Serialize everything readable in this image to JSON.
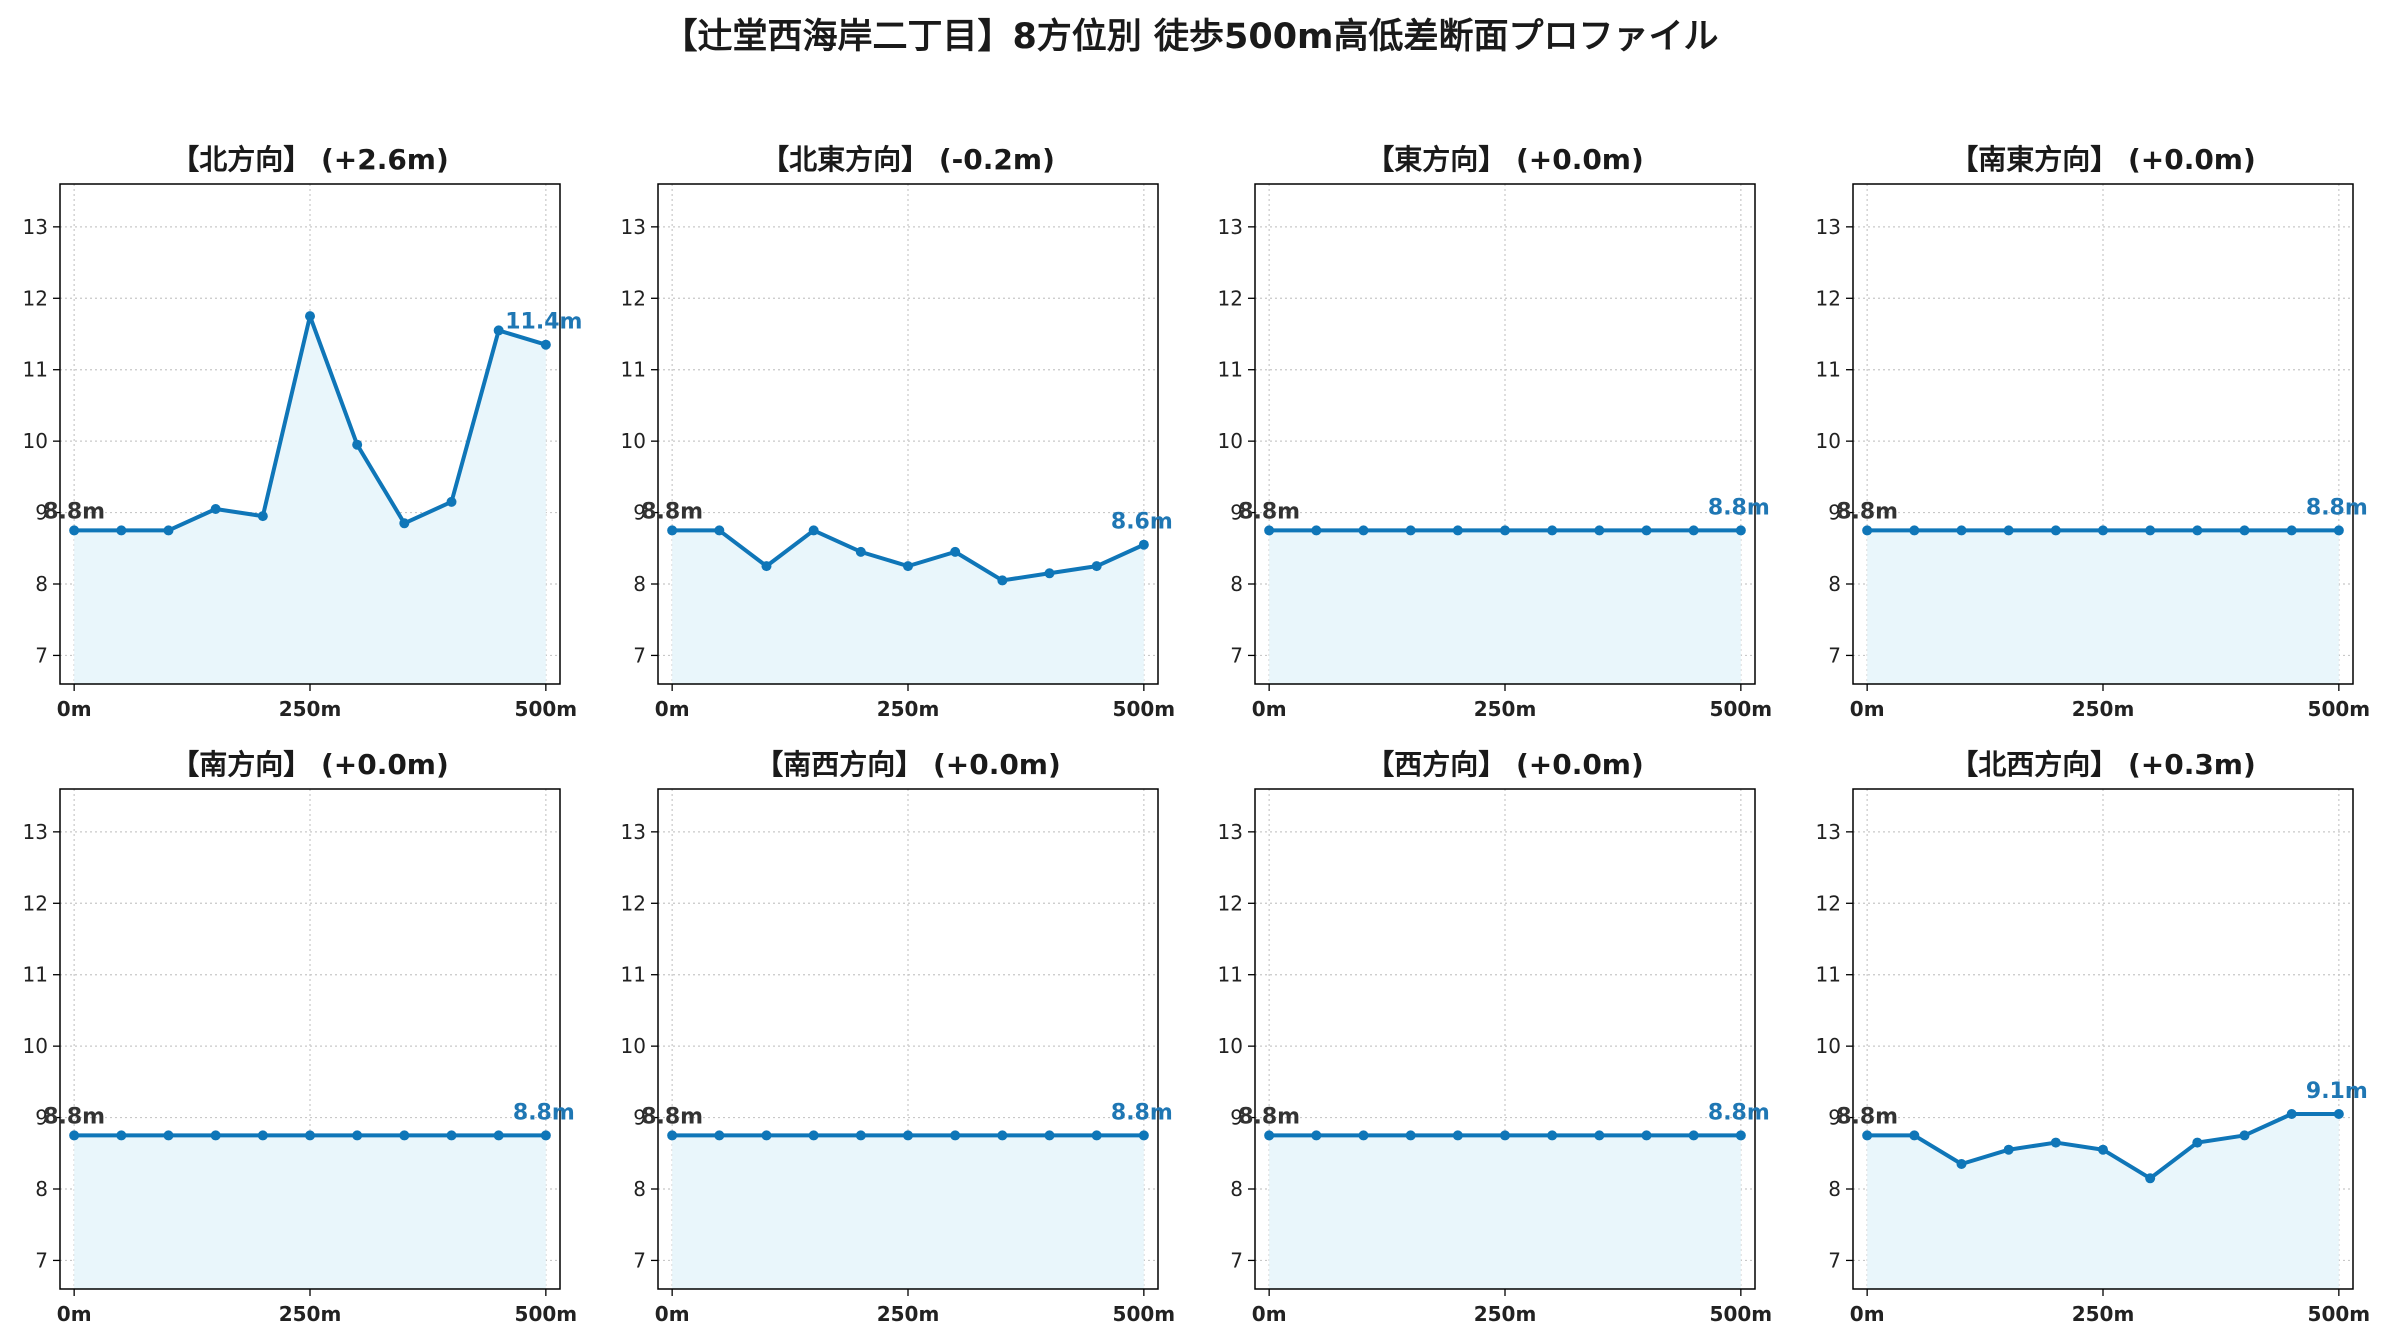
{
  "title": "【辻堂西海岸二丁目】8方位別 徒歩500m高低差断面プロファイル",
  "colors": {
    "line": "#0f76b8",
    "fill": "#e9f6fb",
    "grid": "#c8c8c8",
    "end_label": "#1f77b4",
    "start_label": "#333333"
  },
  "chart_data": [
    {
      "type": "area",
      "title": "【北方向】 (+2.6m)",
      "x": [
        0,
        50,
        100,
        150,
        200,
        250,
        300,
        350,
        400,
        450,
        500
      ],
      "y": [
        8.75,
        8.75,
        8.75,
        9.05,
        8.95,
        11.75,
        9.95,
        8.85,
        9.15,
        11.55,
        11.35
      ],
      "start_label": "8.8m",
      "end_label": "11.4m",
      "ylim": [
        6.6,
        13.6
      ],
      "yticks": [
        7,
        8,
        9,
        10,
        11,
        12,
        13
      ],
      "xticks": [
        0,
        250,
        500
      ],
      "xtick_labels": [
        "0m",
        "250m",
        "500m"
      ],
      "grid": true
    },
    {
      "type": "area",
      "title": "【北東方向】 (-0.2m)",
      "x": [
        0,
        50,
        100,
        150,
        200,
        250,
        300,
        350,
        400,
        450,
        500
      ],
      "y": [
        8.75,
        8.75,
        8.25,
        8.75,
        8.45,
        8.25,
        8.45,
        8.05,
        8.15,
        8.25,
        8.55
      ],
      "start_label": "8.8m",
      "end_label": "8.6m",
      "ylim": [
        6.6,
        13.6
      ],
      "yticks": [
        7,
        8,
        9,
        10,
        11,
        12,
        13
      ],
      "xticks": [
        0,
        250,
        500
      ],
      "xtick_labels": [
        "0m",
        "250m",
        "500m"
      ],
      "grid": true
    },
    {
      "type": "area",
      "title": "【東方向】 (+0.0m)",
      "x": [
        0,
        50,
        100,
        150,
        200,
        250,
        300,
        350,
        400,
        450,
        500
      ],
      "y": [
        8.75,
        8.75,
        8.75,
        8.75,
        8.75,
        8.75,
        8.75,
        8.75,
        8.75,
        8.75,
        8.75
      ],
      "start_label": "8.8m",
      "end_label": "8.8m",
      "ylim": [
        6.6,
        13.6
      ],
      "yticks": [
        7,
        8,
        9,
        10,
        11,
        12,
        13
      ],
      "xticks": [
        0,
        250,
        500
      ],
      "xtick_labels": [
        "0m",
        "250m",
        "500m"
      ],
      "grid": true
    },
    {
      "type": "area",
      "title": "【南東方向】 (+0.0m)",
      "x": [
        0,
        50,
        100,
        150,
        200,
        250,
        300,
        350,
        400,
        450,
        500
      ],
      "y": [
        8.75,
        8.75,
        8.75,
        8.75,
        8.75,
        8.75,
        8.75,
        8.75,
        8.75,
        8.75,
        8.75
      ],
      "start_label": "8.8m",
      "end_label": "8.8m",
      "ylim": [
        6.6,
        13.6
      ],
      "yticks": [
        7,
        8,
        9,
        10,
        11,
        12,
        13
      ],
      "xticks": [
        0,
        250,
        500
      ],
      "xtick_labels": [
        "0m",
        "250m",
        "500m"
      ],
      "grid": true
    },
    {
      "type": "area",
      "title": "【南方向】 (+0.0m)",
      "x": [
        0,
        50,
        100,
        150,
        200,
        250,
        300,
        350,
        400,
        450,
        500
      ],
      "y": [
        8.75,
        8.75,
        8.75,
        8.75,
        8.75,
        8.75,
        8.75,
        8.75,
        8.75,
        8.75,
        8.75
      ],
      "start_label": "8.8m",
      "end_label": "8.8m",
      "ylim": [
        6.6,
        13.6
      ],
      "yticks": [
        7,
        8,
        9,
        10,
        11,
        12,
        13
      ],
      "xticks": [
        0,
        250,
        500
      ],
      "xtick_labels": [
        "0m",
        "250m",
        "500m"
      ],
      "grid": true
    },
    {
      "type": "area",
      "title": "【南西方向】 (+0.0m)",
      "x": [
        0,
        50,
        100,
        150,
        200,
        250,
        300,
        350,
        400,
        450,
        500
      ],
      "y": [
        8.75,
        8.75,
        8.75,
        8.75,
        8.75,
        8.75,
        8.75,
        8.75,
        8.75,
        8.75,
        8.75
      ],
      "start_label": "8.8m",
      "end_label": "8.8m",
      "ylim": [
        6.6,
        13.6
      ],
      "yticks": [
        7,
        8,
        9,
        10,
        11,
        12,
        13
      ],
      "xticks": [
        0,
        250,
        500
      ],
      "xtick_labels": [
        "0m",
        "250m",
        "500m"
      ],
      "grid": true
    },
    {
      "type": "area",
      "title": "【西方向】 (+0.0m)",
      "x": [
        0,
        50,
        100,
        150,
        200,
        250,
        300,
        350,
        400,
        450,
        500
      ],
      "y": [
        8.75,
        8.75,
        8.75,
        8.75,
        8.75,
        8.75,
        8.75,
        8.75,
        8.75,
        8.75,
        8.75
      ],
      "start_label": "8.8m",
      "end_label": "8.8m",
      "ylim": [
        6.6,
        13.6
      ],
      "yticks": [
        7,
        8,
        9,
        10,
        11,
        12,
        13
      ],
      "xticks": [
        0,
        250,
        500
      ],
      "xtick_labels": [
        "0m",
        "250m",
        "500m"
      ],
      "grid": true
    },
    {
      "type": "area",
      "title": "【北西方向】 (+0.3m)",
      "x": [
        0,
        50,
        100,
        150,
        200,
        250,
        300,
        350,
        400,
        450,
        500
      ],
      "y": [
        8.75,
        8.75,
        8.35,
        8.55,
        8.65,
        8.55,
        8.15,
        8.65,
        8.75,
        9.05,
        9.05
      ],
      "start_label": "8.8m",
      "end_label": "9.1m",
      "ylim": [
        6.6,
        13.6
      ],
      "yticks": [
        7,
        8,
        9,
        10,
        11,
        12,
        13
      ],
      "xticks": [
        0,
        250,
        500
      ],
      "xtick_labels": [
        "0m",
        "250m",
        "500m"
      ],
      "grid": true
    }
  ]
}
